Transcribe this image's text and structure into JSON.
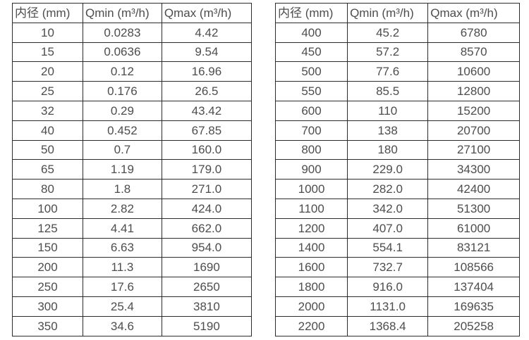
{
  "page": {
    "background_color": "#ffffff",
    "text_color": "#4d4d4d",
    "border_color": "#2b2b2b"
  },
  "tables": [
    {
      "name": "flow-spec-small-diameters",
      "headers": [
        "内径 (mm)",
        "Qmin (m³/h)",
        "Qmax (m³/h)"
      ],
      "rows": [
        [
          "10",
          "0.0283",
          "4.42"
        ],
        [
          "15",
          "0.0636",
          "9.54"
        ],
        [
          "20",
          "0.12",
          "16.96"
        ],
        [
          "25",
          "0.176",
          "26.5"
        ],
        [
          "32",
          "0.29",
          "43.42"
        ],
        [
          "40",
          "0.452",
          "67.85"
        ],
        [
          "50",
          "0.7",
          "160.0"
        ],
        [
          "65",
          "1.19",
          "179.0"
        ],
        [
          "80",
          "1.8",
          "271.0"
        ],
        [
          "100",
          "2.82",
          "424.0"
        ],
        [
          "125",
          "4.41",
          "662.0"
        ],
        [
          "150",
          "6.63",
          "954.0"
        ],
        [
          "200",
          "11.3",
          "1690"
        ],
        [
          "250",
          "17.6",
          "2650"
        ],
        [
          "300",
          "25.4",
          "3810"
        ],
        [
          "350",
          "34.6",
          "5190"
        ]
      ]
    },
    {
      "name": "flow-spec-large-diameters",
      "headers": [
        "内径 (mm)",
        "Qmin (m³/h)",
        "Qmax (m³/h)"
      ],
      "rows": [
        [
          "400",
          "45.2",
          "6780"
        ],
        [
          "450",
          "57.2",
          "8570"
        ],
        [
          "500",
          "77.6",
          "10600"
        ],
        [
          "550",
          "85.5",
          "12800"
        ],
        [
          "600",
          "110",
          "15200"
        ],
        [
          "700",
          "138",
          "20700"
        ],
        [
          "800",
          "180",
          "27100"
        ],
        [
          "900",
          "229.0",
          "34300"
        ],
        [
          "1000",
          "282.0",
          "42400"
        ],
        [
          "1100",
          "342.0",
          "51300"
        ],
        [
          "1200",
          "407.0",
          "61000"
        ],
        [
          "1400",
          "554.1",
          "83121"
        ],
        [
          "1600",
          "732.7",
          "108566"
        ],
        [
          "1800",
          "916.0",
          "137404"
        ],
        [
          "2000",
          "1131.0",
          "169635"
        ],
        [
          "2200",
          "1368.4",
          "205258"
        ]
      ]
    }
  ]
}
